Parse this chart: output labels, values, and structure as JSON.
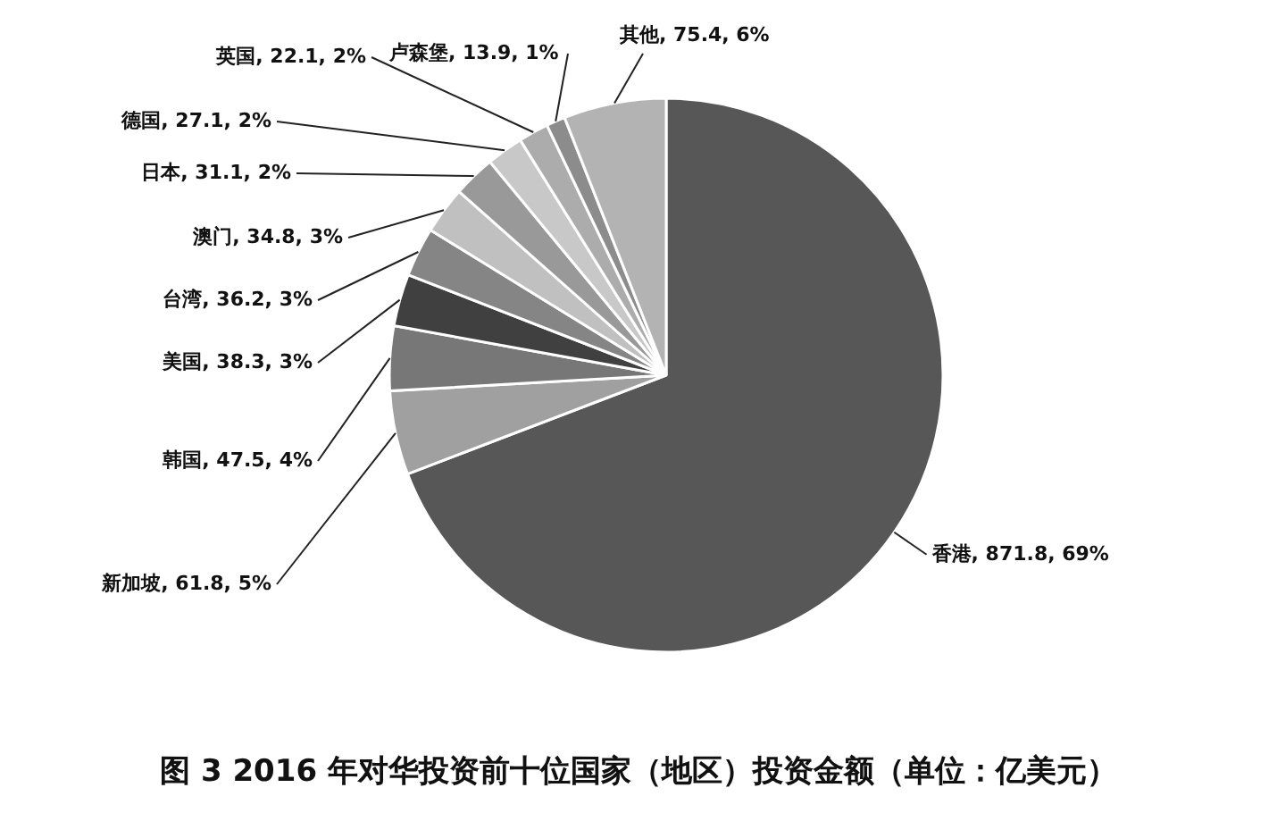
{
  "chart_data": {
    "type": "pie",
    "title": "图 3 2016 年对华投资前十位国家（地区）投资金额（单位：亿美元）",
    "categories": [
      "香港",
      "新加坡",
      "韩国",
      "美国",
      "台湾",
      "澳门",
      "日本",
      "德国",
      "英国",
      "卢森堡",
      "其他"
    ],
    "values": [
      871.8,
      61.8,
      47.5,
      38.3,
      36.2,
      34.8,
      31.1,
      27.1,
      22.1,
      13.9,
      75.4
    ],
    "colors": [
      "#575757",
      "#a0a0a0",
      "#777777",
      "#404040",
      "#858585",
      "#c0c0c0",
      "#999999",
      "#c8c8c8",
      "#acacac",
      "#8c8c8c",
      "#b3b3b3"
    ],
    "value_labels": [
      "871.8, 69%",
      "61.8, 5%",
      "47.5, 4%",
      "38.3, 3%",
      "36.2, 3%",
      "34.8, 3%",
      "31.1, 2%",
      "27.1, 2%",
      "22.1, 2%",
      "13.9, 1%",
      "75.4, 6%"
    ]
  }
}
